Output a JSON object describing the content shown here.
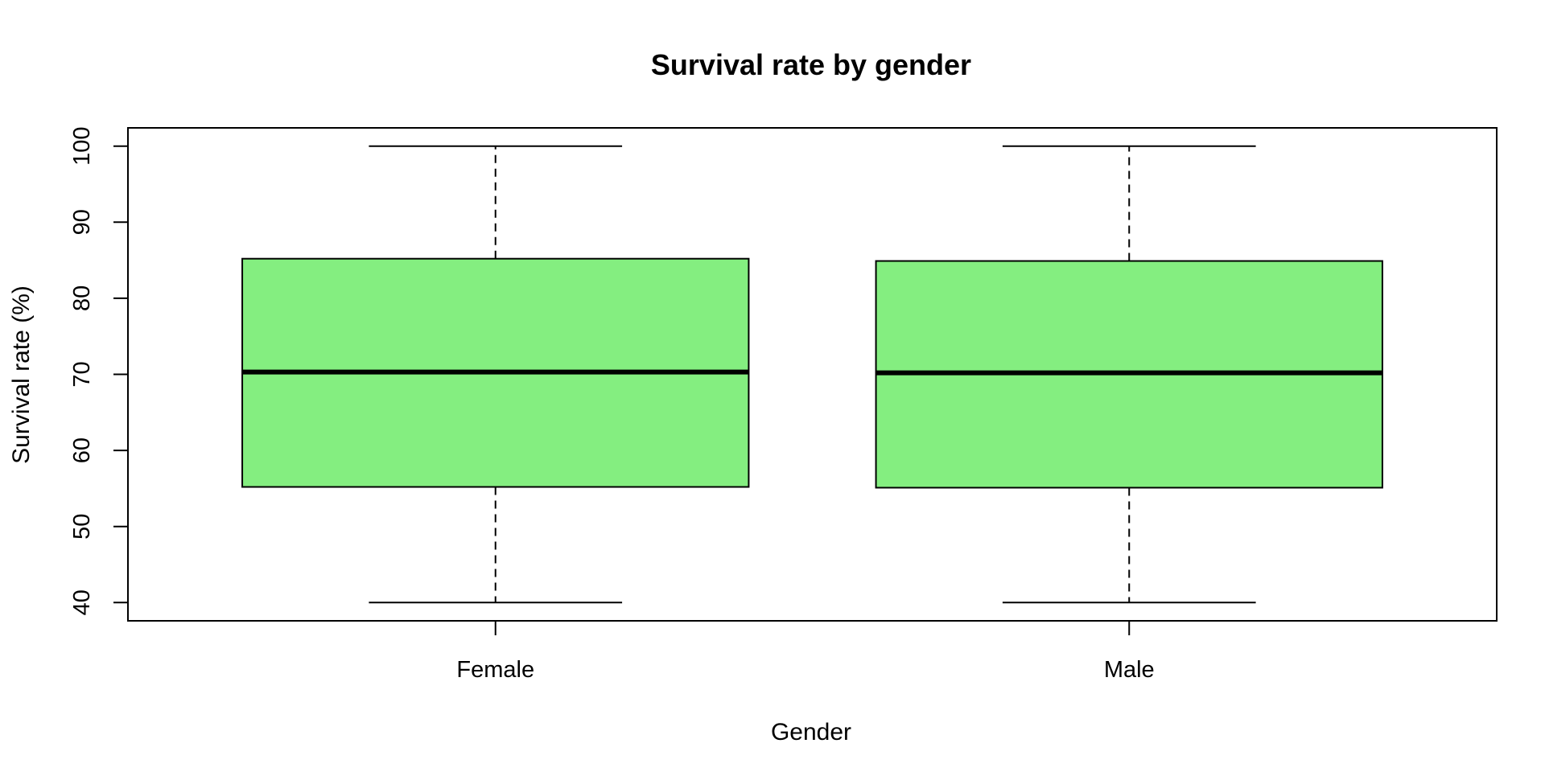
{
  "chart_data": {
    "type": "boxplot",
    "title": "Survival rate by gender",
    "xlabel": "Gender",
    "ylabel": "Survival rate (%)",
    "categories": [
      "Female",
      "Male"
    ],
    "boxes": [
      {
        "category": "Female",
        "min": 40,
        "q1": 55.2,
        "median": 70.3,
        "q3": 85.2,
        "max": 100
      },
      {
        "category": "Male",
        "min": 40,
        "q1": 55.1,
        "median": 70.2,
        "q3": 84.9,
        "max": 100
      }
    ],
    "yticks": [
      40,
      50,
      60,
      70,
      80,
      90,
      100
    ],
    "ylim": [
      37.6,
      102.4
    ],
    "box_color": "#84EE80",
    "grid": false,
    "legend": "none"
  }
}
